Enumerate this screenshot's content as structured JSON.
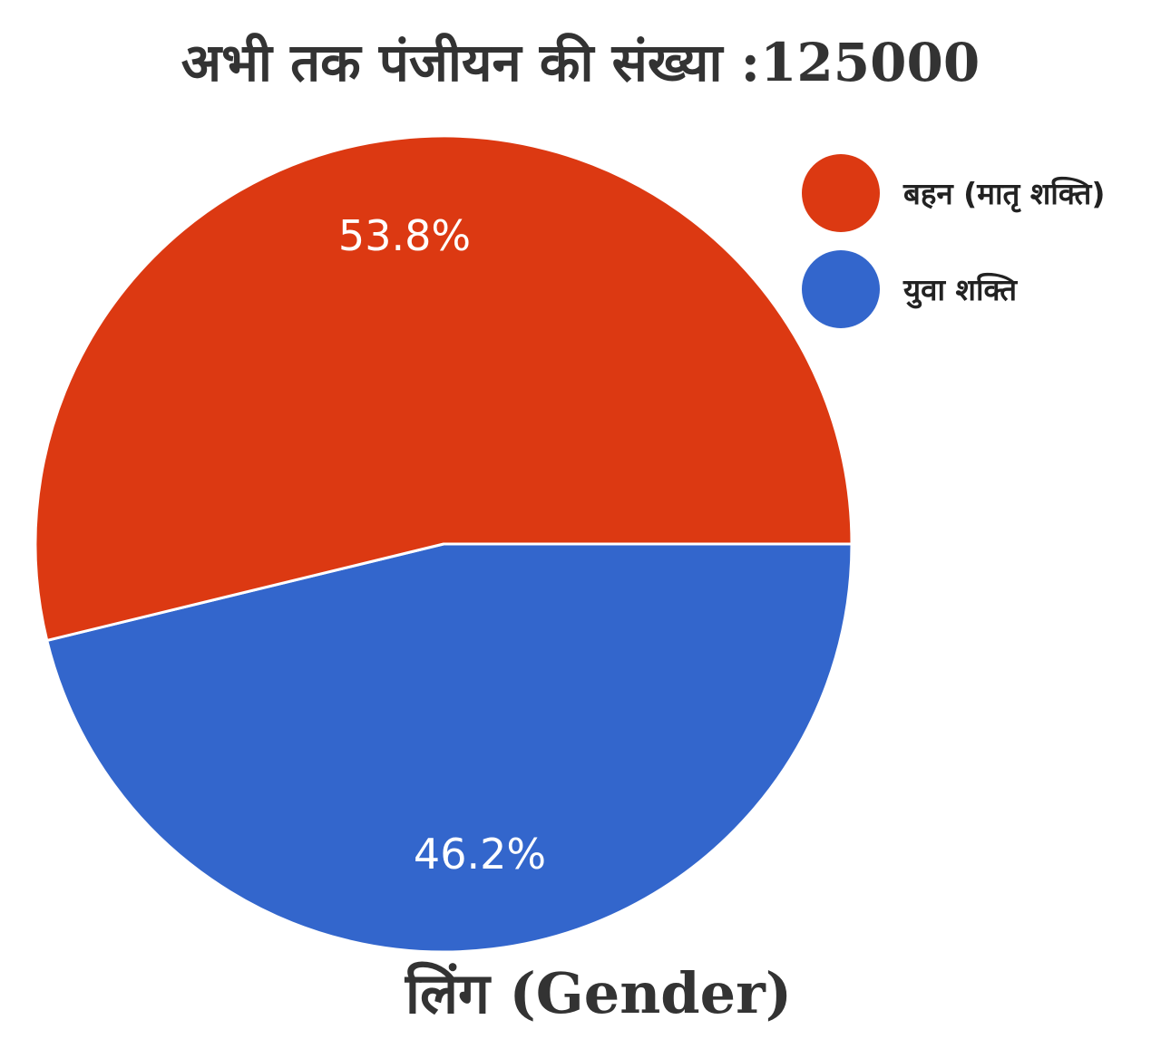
{
  "chart_data": {
    "type": "pie",
    "title": "अभी तक पंजीयन की संख्या :125000",
    "subtitle": "लिंग (Gender)",
    "slices": [
      {
        "label": "बहन (मातृ शक्ति)",
        "value": 53.8,
        "display": "53.8%",
        "color": "#DC3912"
      },
      {
        "label": "युवा शक्ति",
        "value": 46.2,
        "display": "46.2%",
        "color": "#3366CC"
      }
    ],
    "legend_position": "top-right"
  }
}
